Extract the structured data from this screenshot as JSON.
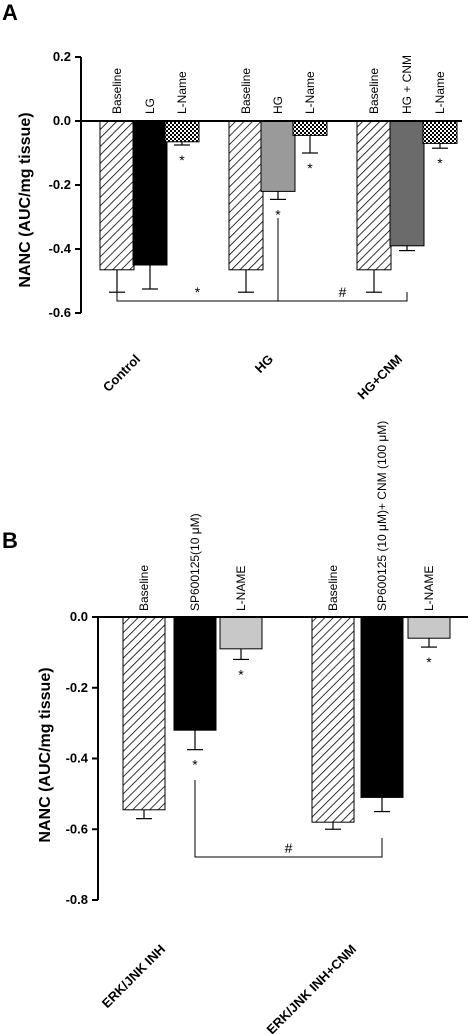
{
  "chart_data": [
    {
      "type": "bar",
      "panel_label": "A",
      "ylabel": "NANC (AUC/mg tissue)",
      "ylim": [
        -0.6,
        0.2
      ],
      "yticks": [
        "0.2",
        "0.0",
        "-0.2",
        "-0.4",
        "-0.6"
      ],
      "groups": [
        {
          "name": "Control",
          "bars": [
            {
              "label": "Baseline",
              "value": -0.465,
              "error": 0.07,
              "fill": "hatch",
              "sig": ""
            },
            {
              "label": "LG",
              "value": -0.45,
              "error": 0.075,
              "fill": "#000000",
              "sig": ""
            },
            {
              "label": "L-Name",
              "value": -0.065,
              "error": 0.01,
              "fill": "checker",
              "sig": "*"
            }
          ]
        },
        {
          "name": "HG",
          "bars": [
            {
              "label": "Baseline",
              "value": -0.465,
              "error": 0.07,
              "fill": "hatch",
              "sig": ""
            },
            {
              "label": "HG",
              "value": -0.22,
              "error": 0.025,
              "fill": "#9a9a9a",
              "sig": "*"
            },
            {
              "label": "L-Name",
              "value": -0.045,
              "error": 0.055,
              "fill": "checker",
              "sig": "*"
            }
          ]
        },
        {
          "name": "HG+CNM",
          "bars": [
            {
              "label": "Baseline",
              "value": -0.465,
              "error": 0.07,
              "fill": "hatch",
              "sig": ""
            },
            {
              "label": "HG + CNM",
              "value": -0.39,
              "error": 0.015,
              "fill": "#6b6b6b",
              "sig": ""
            },
            {
              "label": "L-Name",
              "value": -0.07,
              "error": 0.015,
              "fill": "checker",
              "sig": "*"
            }
          ]
        }
      ],
      "comparisons": [
        {
          "symbol": "*"
        },
        {
          "symbol": "#"
        }
      ]
    },
    {
      "type": "bar",
      "panel_label": "B",
      "ylabel": "NANC (AUC/mg tissue)",
      "ylim": [
        -0.8,
        0.0
      ],
      "yticks": [
        "0.0",
        "-0.2",
        "-0.4",
        "-0.6",
        "-0.8"
      ],
      "groups": [
        {
          "name": "ERK/JNK INH",
          "bars": [
            {
              "label": "Baseline",
              "value": -0.545,
              "error": 0.025,
              "fill": "hatch",
              "sig": ""
            },
            {
              "label": "SP600125(10 μM)",
              "value": -0.32,
              "error": 0.055,
              "fill": "#000000",
              "sig": "*"
            },
            {
              "label": "L-NAME",
              "value": -0.09,
              "error": 0.03,
              "fill": "#c8c8c8",
              "sig": "*"
            }
          ]
        },
        {
          "name": "ERK/JNK INH+CNM",
          "bars": [
            {
              "label": "Baseline",
              "value": -0.58,
              "error": 0.02,
              "fill": "hatch",
              "sig": ""
            },
            {
              "label": "SP600125 (10 μM)+ CNM (100 μM)",
              "value": -0.51,
              "error": 0.04,
              "fill": "#000000",
              "sig": ""
            },
            {
              "label": "L-NAME",
              "value": -0.06,
              "error": 0.025,
              "fill": "#c8c8c8",
              "sig": "*"
            }
          ]
        }
      ],
      "comparisons": [
        {
          "symbol": "#"
        }
      ]
    }
  ]
}
